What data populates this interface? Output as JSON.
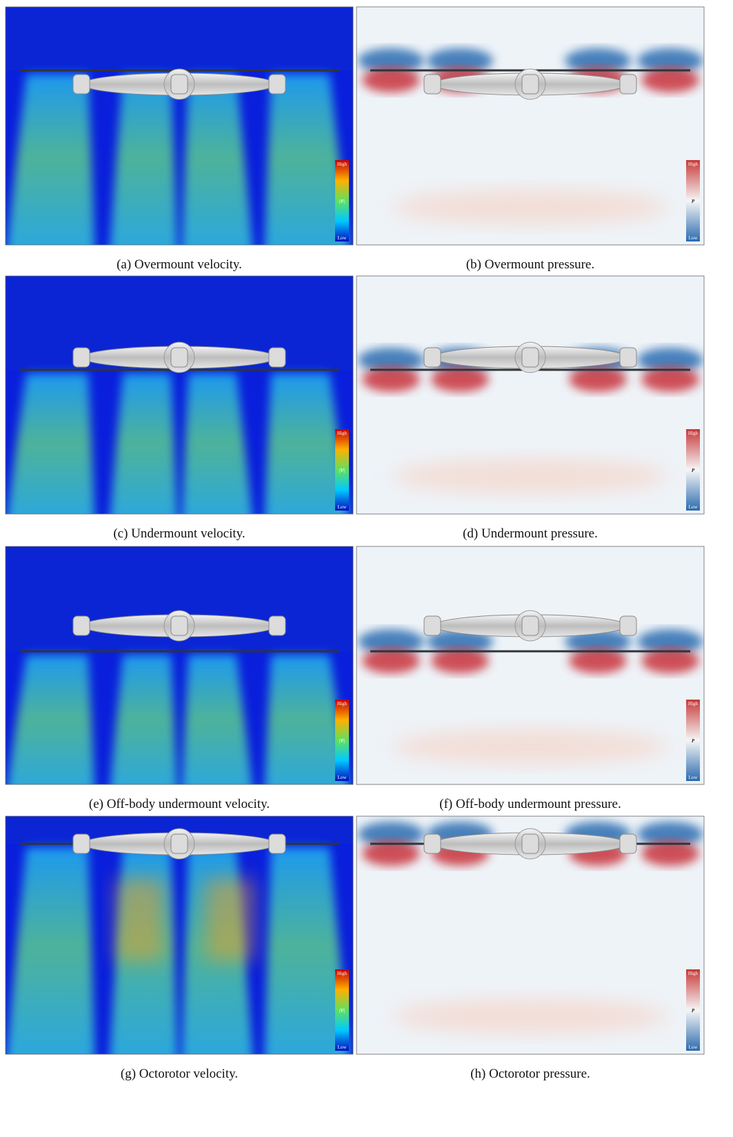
{
  "figure": {
    "panels": [
      {
        "caption": "(a) Overmount velocity.",
        "colorbar": {
          "high": "High",
          "label": "|V|",
          "low": "Low"
        }
      },
      {
        "caption": "(b) Overmount pressure.",
        "colorbar": {
          "high": "High",
          "label": "P",
          "low": "Low"
        }
      },
      {
        "caption": "(c) Undermount velocity.",
        "colorbar": {
          "high": "High",
          "label": "|V|",
          "low": "Low"
        }
      },
      {
        "caption": "(d) Undermount pressure.",
        "colorbar": {
          "high": "High",
          "label": "P",
          "low": "Low"
        }
      },
      {
        "caption": "(e) Off-body undermount velocity.",
        "colorbar": {
          "high": "High",
          "label": "|V|",
          "low": "Low"
        }
      },
      {
        "caption": "(f) Off-body undermount pressure.",
        "colorbar": {
          "high": "High",
          "label": "P",
          "low": "Low"
        }
      },
      {
        "caption": "(g) Octorotor velocity.",
        "colorbar": {
          "high": "High",
          "label": "|V|",
          "low": "Low"
        }
      },
      {
        "caption": "(h) Octorotor pressure.",
        "colorbar": {
          "high": "High",
          "label": "P",
          "low": "Low"
        }
      }
    ]
  }
}
